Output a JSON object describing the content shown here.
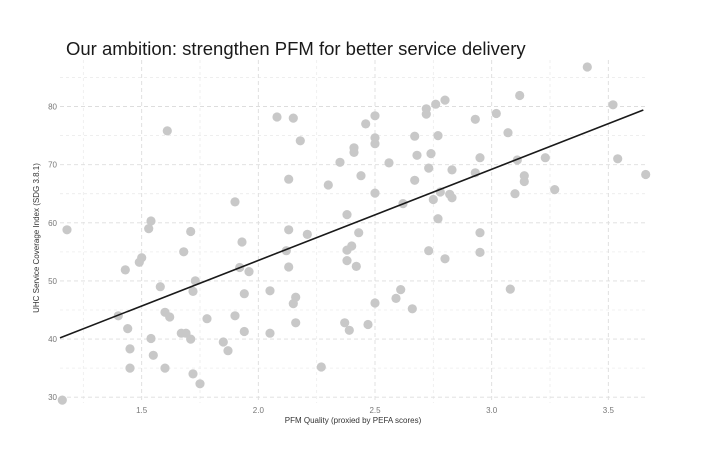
{
  "chart_data": {
    "type": "scatter",
    "title": "Our ambition: strengthen PFM for better service delivery",
    "xlabel": "PFM Quality (proxied by PEFA scores)",
    "ylabel": "UHC Service Coverage Index (SDG 3.8.1)",
    "xlim": [
      1.15,
      3.67
    ],
    "ylim": [
      29,
      88
    ],
    "x_ticks": [
      "1.5",
      "2.0",
      "2.5",
      "3.0",
      "3.5"
    ],
    "y_ticks": [
      "30",
      "40",
      "50",
      "60",
      "70",
      "80"
    ],
    "grid": true,
    "legend": "none",
    "point_color": "#c8c8c8",
    "line_color": "#1a1a1a",
    "trend_line": {
      "x": [
        1.15,
        3.65
      ],
      "y": [
        40.2,
        79.4
      ]
    },
    "points": [
      [
        1.16,
        29.5
      ],
      [
        1.18,
        58.8
      ],
      [
        1.4,
        44.0
      ],
      [
        1.43,
        51.9
      ],
      [
        1.44,
        41.8
      ],
      [
        1.45,
        38.3
      ],
      [
        1.45,
        35.0
      ],
      [
        1.49,
        53.2
      ],
      [
        1.5,
        54.0
      ],
      [
        1.53,
        59.0
      ],
      [
        1.54,
        60.3
      ],
      [
        1.54,
        40.1
      ],
      [
        1.55,
        37.2
      ],
      [
        1.58,
        49.0
      ],
      [
        1.6,
        44.6
      ],
      [
        1.6,
        35.0
      ],
      [
        1.61,
        75.8
      ],
      [
        1.62,
        43.8
      ],
      [
        1.67,
        41.0
      ],
      [
        1.68,
        55.0
      ],
      [
        1.69,
        41.0
      ],
      [
        1.71,
        58.5
      ],
      [
        1.71,
        40.0
      ],
      [
        1.72,
        48.2
      ],
      [
        1.72,
        34.0
      ],
      [
        1.73,
        50.0
      ],
      [
        1.75,
        32.3
      ],
      [
        1.78,
        43.5
      ],
      [
        1.85,
        39.5
      ],
      [
        1.87,
        38.0
      ],
      [
        1.9,
        63.6
      ],
      [
        1.9,
        44.0
      ],
      [
        1.92,
        52.3
      ],
      [
        1.93,
        56.7
      ],
      [
        1.94,
        47.8
      ],
      [
        1.94,
        41.3
      ],
      [
        1.96,
        51.6
      ],
      [
        2.05,
        48.3
      ],
      [
        2.05,
        41.0
      ],
      [
        2.08,
        78.2
      ],
      [
        2.12,
        55.2
      ],
      [
        2.13,
        67.5
      ],
      [
        2.13,
        58.8
      ],
      [
        2.13,
        52.4
      ],
      [
        2.15,
        78.0
      ],
      [
        2.15,
        46.1
      ],
      [
        2.16,
        47.2
      ],
      [
        2.16,
        42.8
      ],
      [
        2.18,
        74.1
      ],
      [
        2.21,
        58.0
      ],
      [
        2.27,
        35.2
      ],
      [
        2.3,
        66.5
      ],
      [
        2.35,
        70.4
      ],
      [
        2.37,
        42.8
      ],
      [
        2.38,
        55.3
      ],
      [
        2.38,
        61.4
      ],
      [
        2.38,
        53.5
      ],
      [
        2.39,
        41.5
      ],
      [
        2.4,
        56.0
      ],
      [
        2.41,
        72.9
      ],
      [
        2.41,
        72.1
      ],
      [
        2.42,
        52.5
      ],
      [
        2.43,
        58.3
      ],
      [
        2.44,
        68.1
      ],
      [
        2.46,
        77.0
      ],
      [
        2.47,
        42.5
      ],
      [
        2.5,
        78.4
      ],
      [
        2.5,
        74.6
      ],
      [
        2.5,
        73.6
      ],
      [
        2.5,
        65.1
      ],
      [
        2.5,
        46.2
      ],
      [
        2.56,
        70.3
      ],
      [
        2.59,
        47.0
      ],
      [
        2.61,
        48.5
      ],
      [
        2.62,
        63.3
      ],
      [
        2.66,
        45.2
      ],
      [
        2.67,
        74.9
      ],
      [
        2.67,
        67.3
      ],
      [
        2.68,
        71.6
      ],
      [
        2.72,
        79.6
      ],
      [
        2.72,
        78.7
      ],
      [
        2.73,
        69.4
      ],
      [
        2.73,
        55.2
      ],
      [
        2.74,
        71.9
      ],
      [
        2.75,
        64.0
      ],
      [
        2.76,
        80.4
      ],
      [
        2.77,
        75.0
      ],
      [
        2.77,
        60.7
      ],
      [
        2.78,
        65.3
      ],
      [
        2.8,
        81.1
      ],
      [
        2.8,
        53.8
      ],
      [
        2.82,
        64.9
      ],
      [
        2.83,
        69.1
      ],
      [
        2.83,
        64.3
      ],
      [
        2.93,
        77.8
      ],
      [
        2.93,
        68.6
      ],
      [
        2.95,
        71.2
      ],
      [
        2.95,
        58.3
      ],
      [
        2.95,
        54.9
      ],
      [
        3.02,
        78.8
      ],
      [
        3.07,
        75.5
      ],
      [
        3.08,
        48.6
      ],
      [
        3.1,
        65.0
      ],
      [
        3.11,
        70.8
      ],
      [
        3.12,
        81.9
      ],
      [
        3.14,
        68.1
      ],
      [
        3.14,
        67.1
      ],
      [
        3.23,
        71.2
      ],
      [
        3.27,
        65.7
      ],
      [
        3.41,
        86.8
      ],
      [
        3.52,
        80.3
      ],
      [
        3.54,
        71.0
      ],
      [
        3.66,
        68.3
      ]
    ]
  }
}
